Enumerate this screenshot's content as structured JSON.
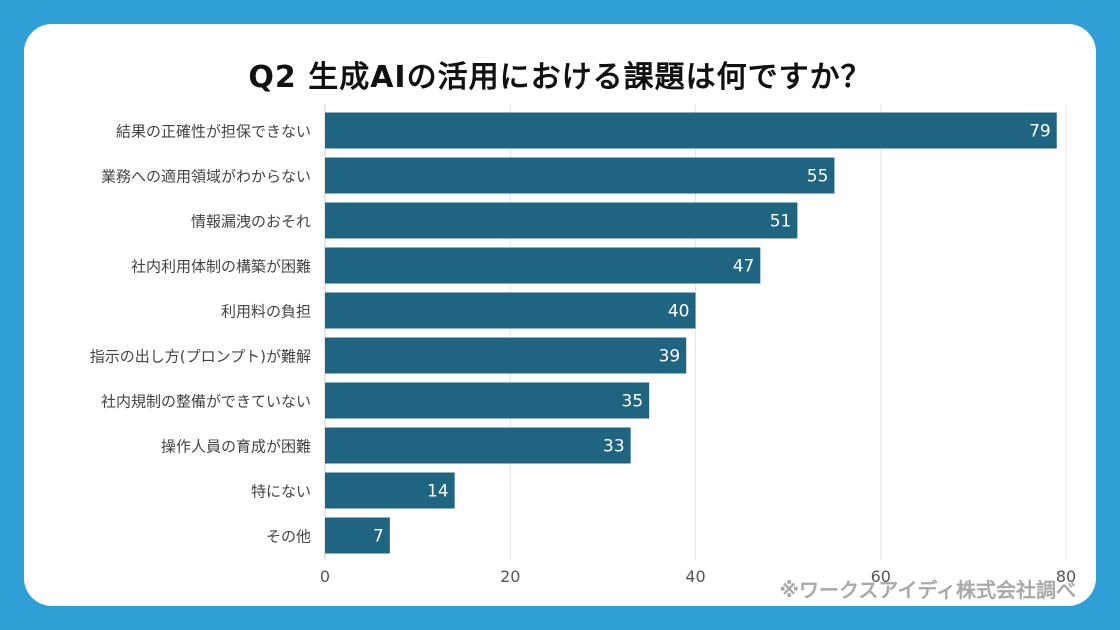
{
  "chart_data": {
    "type": "bar",
    "orientation": "horizontal",
    "title": "Q2 生成AIの活用における課題は何ですか？",
    "categories": [
      "結果の正確性が担保できない",
      "業務への適用領域がわからない",
      "情報漏洩のおそれ",
      "社内利用体制の構築が困難",
      "利用料の負担",
      "指示の出し方(プロンプト)が難解",
      "社内規制の整備ができていない",
      "操作人員の育成が困難",
      "特にない",
      "その他"
    ],
    "values": [
      79,
      55,
      51,
      47,
      40,
      39,
      35,
      33,
      14,
      7
    ],
    "xlim": [
      0,
      80
    ],
    "xticks": [
      "0",
      "20",
      "40",
      "60",
      "80"
    ],
    "xlabel": "",
    "ylabel": "",
    "grid": true,
    "bar_color": "#1f6582",
    "label_color": "#ffffff"
  },
  "footer": {
    "source": "※ワークスアイディ株式会社調べ"
  },
  "colors": {
    "background": "#2f9fd5",
    "card": "#ffffff"
  }
}
